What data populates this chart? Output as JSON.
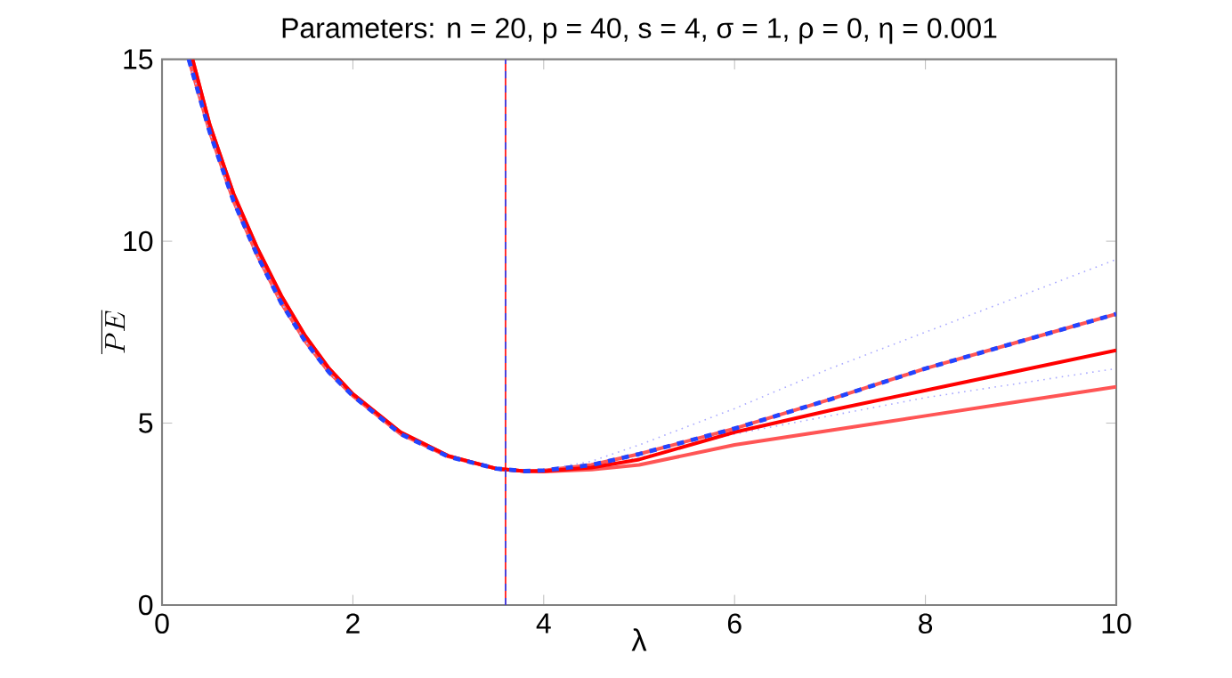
{
  "chart_data": {
    "type": "line",
    "title": "Parameters: n = 20, p = 40, s = 4, σ = 1, ρ = 0, η = 0.001",
    "xlabel": "λ",
    "ylabel": "\\overline{PE}",
    "xlim": [
      0,
      10
    ],
    "ylim": [
      0,
      15
    ],
    "xticks": [
      0,
      2,
      4,
      6,
      8,
      10
    ],
    "yticks": [
      0,
      5,
      10,
      15
    ],
    "grid": false,
    "marker": "none",
    "series": [
      {
        "color": "#ff5555",
        "line_style": "solid",
        "x": [
          0.28,
          0.5,
          0.75,
          1,
          1.25,
          1.5,
          1.75,
          2,
          2.5,
          3,
          3.5,
          3.8,
          4,
          4.5,
          5,
          6,
          7,
          8,
          9,
          10
        ],
        "values": [
          15,
          13.0,
          11.1,
          9.6,
          8.3,
          7.25,
          6.4,
          5.75,
          4.7,
          4.08,
          3.75,
          3.68,
          3.7,
          3.85,
          4.15,
          4.85,
          5.65,
          6.5,
          7.25,
          8.0
        ]
      },
      {
        "color": "#ff5555",
        "line_style": "solid",
        "x": [
          0.32,
          0.5,
          0.75,
          1,
          1.25,
          1.5,
          1.75,
          2,
          2.5,
          3,
          3.5,
          3.8,
          4,
          4.5,
          5,
          6,
          7,
          8,
          9,
          10
        ],
        "values": [
          15,
          13.2,
          11.3,
          9.8,
          8.5,
          7.4,
          6.5,
          5.8,
          4.75,
          4.1,
          3.75,
          3.68,
          3.67,
          3.72,
          3.85,
          4.4,
          4.8,
          5.2,
          5.6,
          6.0
        ]
      },
      {
        "color": "#aaaaff",
        "line_style": "dotted",
        "x": [
          0.28,
          0.5,
          0.75,
          1,
          1.25,
          1.5,
          1.75,
          2,
          2.5,
          3,
          3.5,
          3.8,
          4,
          4.5,
          5,
          6,
          7,
          8,
          9,
          10
        ],
        "values": [
          15,
          13.0,
          11.1,
          9.6,
          8.3,
          7.25,
          6.4,
          5.75,
          4.7,
          4.08,
          3.75,
          3.68,
          3.72,
          3.95,
          4.4,
          5.4,
          6.5,
          7.5,
          8.5,
          9.5
        ]
      },
      {
        "color": "#aaaaff",
        "line_style": "dotted",
        "x": [
          0.28,
          0.5,
          0.75,
          1,
          1.25,
          1.5,
          1.75,
          2,
          2.5,
          3,
          3.5,
          3.8,
          4,
          4.5,
          5,
          6,
          7,
          8,
          9,
          10
        ],
        "values": [
          15,
          13.0,
          11.1,
          9.6,
          8.3,
          7.25,
          6.4,
          5.75,
          4.7,
          4.08,
          3.75,
          3.68,
          3.68,
          3.8,
          4.05,
          4.7,
          5.2,
          5.7,
          6.1,
          6.5
        ]
      },
      {
        "color": "#ff0000",
        "line_style": "solid",
        "x": [
          0.32,
          0.5,
          0.75,
          1,
          1.25,
          1.5,
          1.75,
          2,
          2.5,
          3,
          3.5,
          3.8,
          4,
          4.5,
          5,
          6,
          7,
          8,
          9,
          10
        ],
        "values": [
          15,
          13.2,
          11.3,
          9.8,
          8.5,
          7.4,
          6.5,
          5.8,
          4.75,
          4.1,
          3.75,
          3.68,
          3.68,
          3.78,
          4.0,
          4.75,
          5.35,
          5.9,
          6.45,
          7.0
        ]
      },
      {
        "color": "#2244ff",
        "line_style": "dashed",
        "x": [
          0.28,
          0.5,
          0.75,
          1,
          1.25,
          1.5,
          1.75,
          2,
          2.5,
          3,
          3.5,
          3.8,
          4,
          4.5,
          5,
          6,
          7,
          8,
          9,
          10
        ],
        "values": [
          15,
          13.0,
          11.1,
          9.6,
          8.3,
          7.25,
          6.4,
          5.75,
          4.7,
          4.08,
          3.75,
          3.68,
          3.7,
          3.85,
          4.15,
          4.85,
          5.65,
          6.5,
          7.25,
          8.0
        ]
      }
    ],
    "ref_lines": [
      {
        "axis": "x",
        "value": 3.6,
        "color": "#ff0000",
        "line_style": "solid"
      },
      {
        "axis": "x",
        "value": 3.6,
        "color": "#2244ff",
        "line_style": "dashed"
      }
    ]
  }
}
